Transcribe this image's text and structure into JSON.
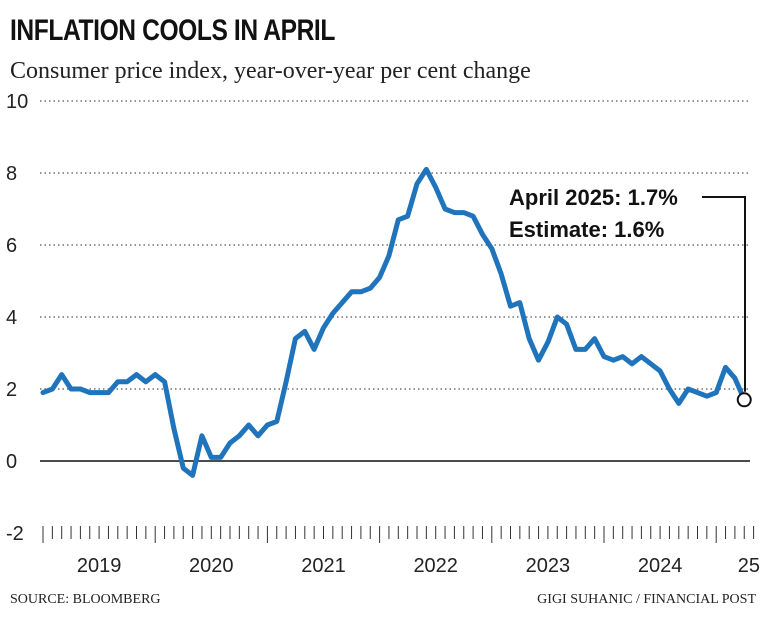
{
  "title": "INFLATION COOLS IN APRIL",
  "subtitle": "Consumer price index, year-over-year per cent change",
  "footer": {
    "source": "SOURCE: BLOOMBERG",
    "credit": "GIGI SUHANIC / FINANCIAL POST"
  },
  "colors": {
    "line": "#1f74bb",
    "text": "#111111",
    "grid": "#555555"
  },
  "chart_data": {
    "type": "line",
    "title": "INFLATION COOLS IN APRIL",
    "ylabel": "Consumer price index, year-over-year per cent change",
    "xlabel": "",
    "ylim": [
      -2,
      10
    ],
    "yticks": [
      "10",
      "8",
      "6",
      "4",
      "2",
      "0",
      "-2"
    ],
    "ytick_values": [
      10,
      8,
      6,
      4,
      2,
      0,
      -2
    ],
    "grid": "dotted horizontal",
    "year_labels": [
      "2019",
      "2020",
      "2021",
      "2022",
      "2023",
      "2024",
      "25"
    ],
    "year_label_months": [
      6,
      18,
      30,
      42,
      54,
      66,
      75.5
    ],
    "series": [
      {
        "name": "CPI year-over-year % change",
        "start": "2019-01",
        "values": [
          1.9,
          2.0,
          2.4,
          2.0,
          2.0,
          1.9,
          1.9,
          1.9,
          2.2,
          2.2,
          2.4,
          2.2,
          2.4,
          2.2,
          0.9,
          -0.2,
          -0.4,
          0.7,
          0.1,
          0.1,
          0.5,
          0.7,
          1.0,
          0.7,
          1.0,
          1.1,
          2.2,
          3.4,
          3.6,
          3.1,
          3.7,
          4.1,
          4.4,
          4.7,
          4.7,
          4.8,
          5.1,
          5.7,
          6.7,
          6.8,
          7.7,
          8.1,
          7.6,
          7.0,
          6.9,
          6.9,
          6.8,
          6.3,
          5.9,
          5.2,
          4.3,
          4.4,
          3.4,
          2.8,
          3.3,
          4.0,
          3.8,
          3.1,
          3.1,
          3.4,
          2.9,
          2.8,
          2.9,
          2.7,
          2.9,
          2.7,
          2.5,
          2.0,
          1.6,
          2.0,
          1.9,
          1.8,
          1.9,
          2.6,
          2.3,
          1.7
        ]
      }
    ],
    "annotation": {
      "line1": "April 2025: 1.7%",
      "line2": "Estimate: 1.6%",
      "month_index": 75,
      "value": 1.7
    }
  }
}
